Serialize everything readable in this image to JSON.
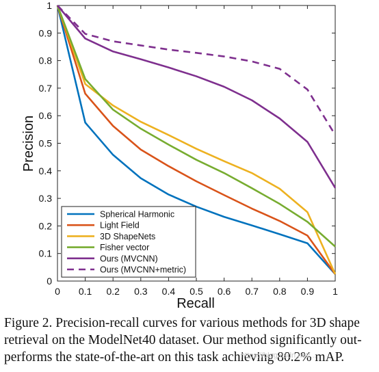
{
  "chart_data": {
    "type": "line",
    "xlabel": "Recall",
    "ylabel": "Precision",
    "xlim": [
      0,
      1
    ],
    "ylim": [
      0,
      1
    ],
    "xticks": [
      0,
      0.1,
      0.2,
      0.3,
      0.4,
      0.5,
      0.6,
      0.7,
      0.8,
      0.9,
      1
    ],
    "yticks": [
      0,
      0.1,
      0.2,
      0.3,
      0.4,
      0.5,
      0.6,
      0.7,
      0.8,
      0.9,
      1
    ],
    "xtick_labels": [
      "0",
      "0.1",
      "0.2",
      "0.3",
      "0.4",
      "0.5",
      "0.6",
      "0.7",
      "0.8",
      "0.9",
      "1"
    ],
    "ytick_labels": [
      "0",
      "0.1",
      "0.2",
      "0.3",
      "0.4",
      "0.5",
      "0.6",
      "0.7",
      "0.8",
      "0.9",
      "1"
    ],
    "grid": false,
    "legend_position": "bottom-left",
    "x": [
      0,
      0.1,
      0.2,
      0.3,
      0.4,
      0.5,
      0.6,
      0.7,
      0.8,
      0.9,
      1
    ],
    "series": [
      {
        "name": "Spherical Harmonic",
        "color": "#0072BD",
        "dash": "solid",
        "values": [
          1.0,
          0.575,
          0.458,
          0.373,
          0.314,
          0.27,
          0.233,
          0.202,
          0.17,
          0.137,
          0.025
        ]
      },
      {
        "name": "Light Field",
        "color": "#D95319",
        "dash": "solid",
        "values": [
          1.0,
          0.68,
          0.563,
          0.477,
          0.417,
          0.362,
          0.312,
          0.263,
          0.218,
          0.165,
          0.025
        ]
      },
      {
        "name": "3D ShapeNets",
        "color": "#EDB120",
        "dash": "solid",
        "values": [
          1.0,
          0.715,
          0.637,
          0.578,
          0.53,
          0.48,
          0.435,
          0.392,
          0.335,
          0.25,
          0.025
        ]
      },
      {
        "name": "Fisher vector",
        "color": "#77AC30",
        "dash": "solid",
        "values": [
          1.0,
          0.733,
          0.622,
          0.553,
          0.495,
          0.44,
          0.392,
          0.337,
          0.28,
          0.215,
          0.125
        ]
      },
      {
        "name": "Ours (MVCNN)",
        "color": "#7E2F8E",
        "dash": "solid",
        "values": [
          1.0,
          0.88,
          0.833,
          0.805,
          0.775,
          0.743,
          0.705,
          0.656,
          0.59,
          0.505,
          0.338
        ]
      },
      {
        "name": "Ours (MVCNN+metric)",
        "color": "#7E2F8E",
        "dash": "dashed",
        "values": [
          1.0,
          0.897,
          0.87,
          0.855,
          0.84,
          0.828,
          0.815,
          0.797,
          0.77,
          0.695,
          0.53
        ]
      }
    ]
  },
  "caption": {
    "line1": "Figure 2. Precision-recall curves for various methods for 3D shape",
    "line2": "retrieval on the ModelNet40 dataset. Our method significantly out-",
    "line3": "performs the state-of-the-art on this task achieving 80.2% mAP."
  },
  "watermark": "https://blog.csdn.net/..."
}
